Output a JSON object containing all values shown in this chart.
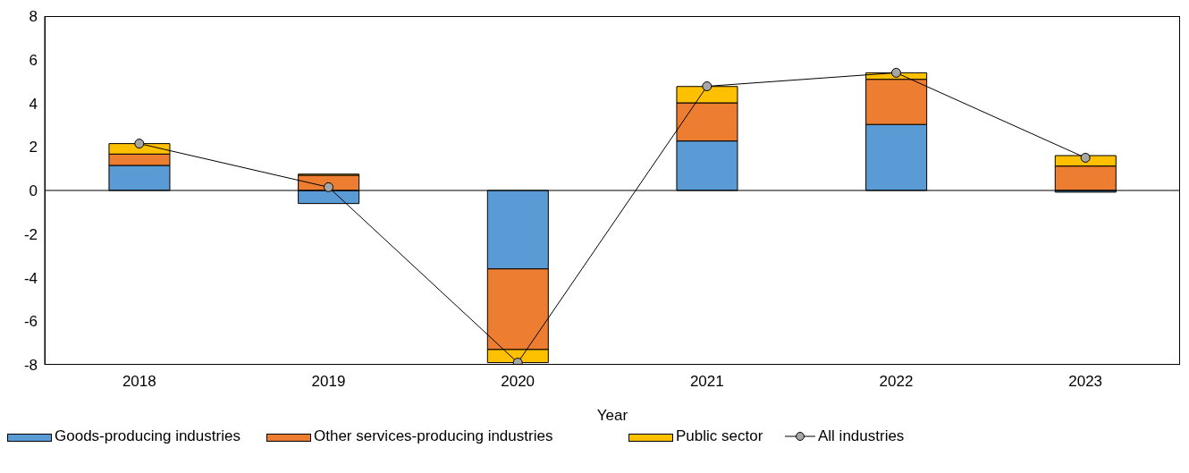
{
  "chart_data": {
    "type": "bar",
    "xlabel": "Year",
    "categories": [
      "2018",
      "2019",
      "2020",
      "2021",
      "2022",
      "2023"
    ],
    "stacked": true,
    "ylim": [
      -8,
      8
    ],
    "yticks": [
      -8,
      -6,
      -4,
      -2,
      0,
      2,
      4,
      6,
      8
    ],
    "legend": "bottom",
    "series": [
      {
        "name": "Goods-producing industries",
        "color": "#5b9bd5",
        "values": [
          1.15,
          -0.6,
          -3.6,
          2.27,
          3.03,
          -0.08
        ]
      },
      {
        "name": "Other services-producing industries",
        "color": "#ed7d31",
        "values": [
          0.52,
          0.7,
          -3.7,
          1.75,
          2.07,
          1.12
        ]
      },
      {
        "name": "Public sector",
        "color": "#ffc000",
        "values": [
          0.48,
          0.05,
          -0.6,
          0.75,
          0.3,
          0.48
        ]
      },
      {
        "name": "All industries",
        "type": "line",
        "color": "#a6a6a6",
        "marker": "circle",
        "values": [
          2.15,
          0.15,
          -7.9,
          4.78,
          5.4,
          1.5
        ]
      }
    ]
  }
}
